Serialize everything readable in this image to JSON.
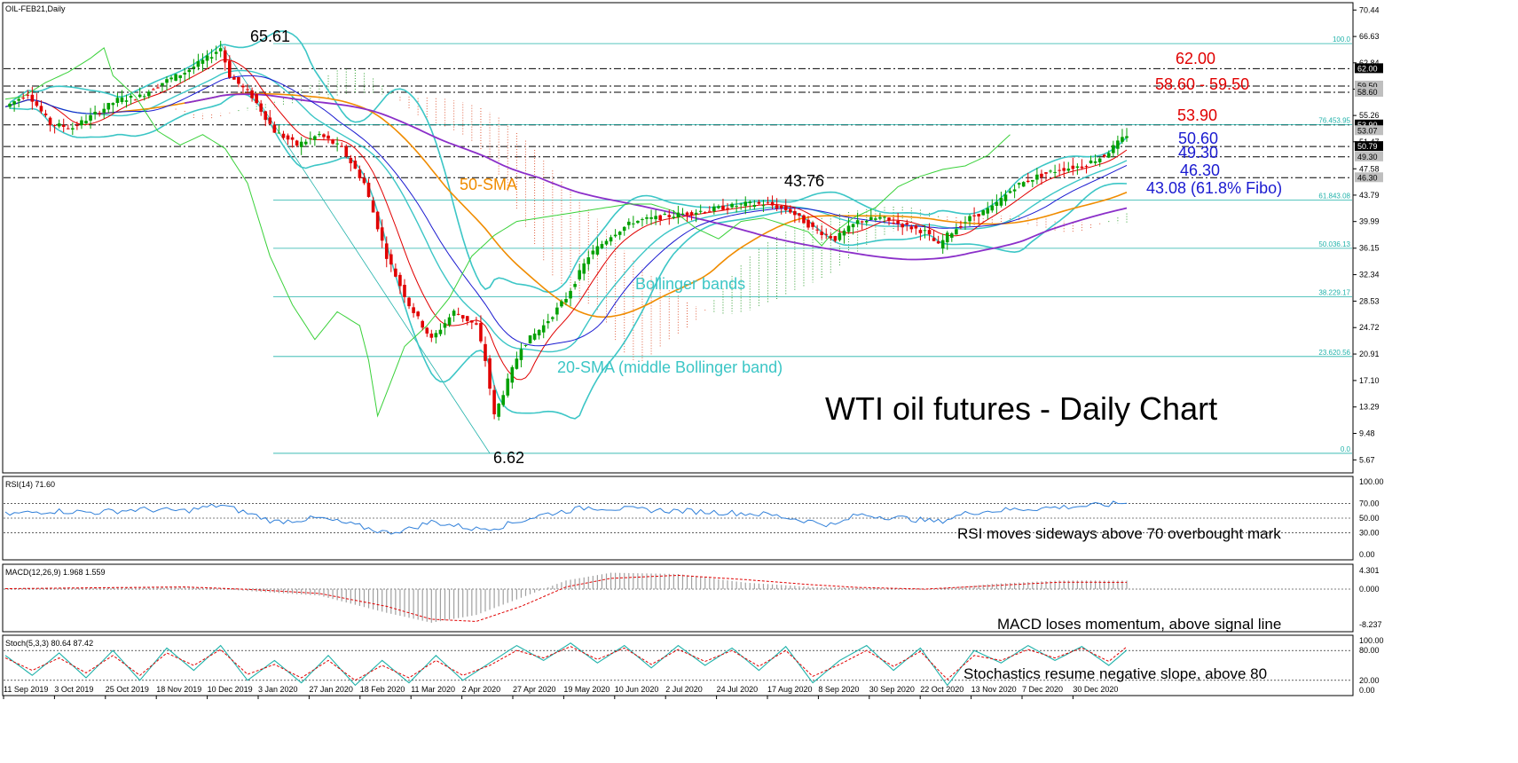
{
  "header": {
    "symbol": "OIL-FEB21,Daily",
    "title": "WTI oil futures - Daily Chart"
  },
  "colors": {
    "candle_up": "#00a000",
    "candle_down": "#e00000",
    "bollinger": "#3cc6c6",
    "sma50": "#f08c00",
    "sma200": "#8b2fc9",
    "tenkan": "#e00000",
    "kijun": "#1a1ad0",
    "chikou": "#3ad13a",
    "cloud_bull": "#2e9e2e",
    "cloud_bear": "#e06040",
    "fibo": "#20b2aa",
    "rsi": "#2f7fd9",
    "macd_hist": "#a0a0a0",
    "macd_signal": "#e00000",
    "stoch_k": "#20b2aa",
    "stoch_d": "#e00000"
  },
  "price_axis": {
    "ticks": [
      "70.44",
      "66.63",
      "62.84",
      "59.05",
      "55.26",
      "51.47",
      "47.58",
      "43.79",
      "39.99",
      "36.15",
      "32.34",
      "28.53",
      "24.72",
      "20.91",
      "17.10",
      "13.29",
      "9.48",
      "5.67"
    ],
    "highlights": [
      {
        "value": "62.00",
        "style": "dark"
      },
      {
        "value": "59.50",
        "style": "light"
      },
      {
        "value": "58.60",
        "style": "light"
      },
      {
        "value": "53.90",
        "style": "dark"
      },
      {
        "value": "53.07",
        "style": "light"
      },
      {
        "value": "50.79",
        "style": "dark"
      },
      {
        "value": "49.30",
        "style": "light"
      },
      {
        "value": "46.30",
        "style": "light"
      }
    ]
  },
  "fibo_labels": [
    "100.0",
    "61.843.08",
    "50.036.13",
    "38.229.17",
    "23.620.56",
    "0.0",
    "76.453.95"
  ],
  "annotations": {
    "high": "65.61",
    "low": "6.62",
    "mid_high": "43.76",
    "r1": "62.00",
    "r2": "58.60 - 59.50",
    "r3": "53.90",
    "s1": "50.60",
    "s2": "49.30",
    "s3": "46.30",
    "s4": "43.08 (61.8% Fibo)",
    "sma50_label": "50-SMA",
    "bb_label": "Bollinger bands",
    "sma20_label": "20-SMA (middle Bollinger band)"
  },
  "rsi_panel": {
    "title": "RSI(14) 71.60",
    "ticks": [
      "100.00",
      "70.00",
      "50.00",
      "30.00",
      "0.00"
    ],
    "comment": "RSI moves sideways above 70 overbought mark"
  },
  "macd_panel": {
    "title": "MACD(12,26,9) 1.968 1.559",
    "ticks": [
      "4.301",
      "0.000",
      "-8.237"
    ],
    "comment": "MACD loses momentum, above signal line"
  },
  "stoch_panel": {
    "title": "Stoch(5,3,3) 80.64 87.42",
    "ticks": [
      "100.00",
      "80.00",
      "20.00",
      "0.00"
    ],
    "comment": "Stochastics resume negative slope, above 80"
  },
  "x_axis": {
    "labels": [
      "11 Sep 2019",
      "3 Oct 2019",
      "25 Oct 2019",
      "18 Nov 2019",
      "10 Dec 2019",
      "3 Jan 2020",
      "27 Jan 2020",
      "18 Feb 2020",
      "11 Mar 2020",
      "2 Apr 2020",
      "27 Apr 2020",
      "19 May 2020",
      "10 Jun 2020",
      "2 Jul 2020",
      "24 Jul 2020",
      "17 Aug 2020",
      "8 Sep 2020",
      "30 Sep 2020",
      "22 Oct 2020",
      "13 Nov 2020",
      "7 Dec 2020",
      "30 Dec 2020"
    ]
  },
  "chart_data": {
    "type": "candlestick",
    "title": "WTI oil futures - Daily Chart",
    "y_range": [
      3.8,
      71.5
    ],
    "x_range_dates": [
      "11 Sep 2019",
      "13 Jan 2021"
    ],
    "price_path": [
      [
        0,
        56.5
      ],
      [
        5,
        58.5
      ],
      [
        10,
        54.0
      ],
      [
        15,
        53.5
      ],
      [
        20,
        55.5
      ],
      [
        25,
        57.5
      ],
      [
        30,
        58.0
      ],
      [
        35,
        60.0
      ],
      [
        40,
        61.5
      ],
      [
        45,
        63.5
      ],
      [
        48,
        65.0
      ],
      [
        50,
        61.0
      ],
      [
        55,
        58.0
      ],
      [
        60,
        53.0
      ],
      [
        65,
        51.0
      ],
      [
        70,
        52.5
      ],
      [
        75,
        50.5
      ],
      [
        80,
        45.5
      ],
      [
        85,
        35.0
      ],
      [
        90,
        28.0
      ],
      [
        95,
        23.0
      ],
      [
        100,
        27.0
      ],
      [
        105,
        25.0
      ],
      [
        107,
        20.0
      ],
      [
        109,
        12.0
      ],
      [
        112,
        17.0
      ],
      [
        115,
        22.0
      ],
      [
        120,
        25.0
      ],
      [
        125,
        29.0
      ],
      [
        130,
        35.0
      ],
      [
        135,
        38.0
      ],
      [
        140,
        40.0
      ],
      [
        145,
        40.5
      ],
      [
        150,
        41.0
      ],
      [
        155,
        41.5
      ],
      [
        160,
        42.0
      ],
      [
        165,
        42.5
      ],
      [
        170,
        42.5
      ],
      [
        175,
        41.5
      ],
      [
        180,
        39.0
      ],
      [
        185,
        37.5
      ],
      [
        190,
        40.0
      ],
      [
        195,
        40.5
      ],
      [
        200,
        39.5
      ],
      [
        205,
        38.5
      ],
      [
        208,
        36.5
      ],
      [
        210,
        38.0
      ],
      [
        215,
        40.5
      ],
      [
        220,
        42.0
      ],
      [
        225,
        45.0
      ],
      [
        230,
        46.5
      ],
      [
        235,
        47.5
      ],
      [
        240,
        48.0
      ],
      [
        245,
        49.5
      ],
      [
        250,
        52.5
      ]
    ],
    "rsi": [
      [
        0,
        55
      ],
      [
        10,
        60
      ],
      [
        20,
        58
      ],
      [
        30,
        62
      ],
      [
        40,
        60
      ],
      [
        48,
        68
      ],
      [
        55,
        55
      ],
      [
        60,
        45
      ],
      [
        70,
        50
      ],
      [
        78,
        40
      ],
      [
        85,
        30
      ],
      [
        90,
        35
      ],
      [
        95,
        45
      ],
      [
        100,
        40
      ],
      [
        105,
        35
      ],
      [
        110,
        38
      ],
      [
        120,
        55
      ],
      [
        130,
        65
      ],
      [
        140,
        62
      ],
      [
        150,
        60
      ],
      [
        160,
        58
      ],
      [
        170,
        55
      ],
      [
        180,
        45
      ],
      [
        185,
        40
      ],
      [
        190,
        55
      ],
      [
        200,
        50
      ],
      [
        208,
        45
      ],
      [
        215,
        58
      ],
      [
        225,
        62
      ],
      [
        235,
        65
      ],
      [
        245,
        68
      ],
      [
        250,
        71.6
      ]
    ],
    "macd_hist": [
      [
        0,
        0.2
      ],
      [
        20,
        0.4
      ],
      [
        40,
        0.6
      ],
      [
        55,
        -0.5
      ],
      [
        70,
        -1.5
      ],
      [
        85,
        -5.5
      ],
      [
        95,
        -7.8
      ],
      [
        105,
        -6.0
      ],
      [
        115,
        -2.0
      ],
      [
        125,
        2.0
      ],
      [
        135,
        3.8
      ],
      [
        150,
        3.5
      ],
      [
        165,
        1.5
      ],
      [
        180,
        0.5
      ],
      [
        190,
        0.3
      ],
      [
        205,
        -0.2
      ],
      [
        220,
        1.2
      ],
      [
        235,
        2.0
      ],
      [
        250,
        1.97
      ]
    ],
    "macd_signal": [
      [
        0,
        0.1
      ],
      [
        20,
        0.3
      ],
      [
        40,
        0.5
      ],
      [
        55,
        -0.1
      ],
      [
        70,
        -1.0
      ],
      [
        85,
        -4.0
      ],
      [
        95,
        -7.0
      ],
      [
        105,
        -7.5
      ],
      [
        115,
        -4.0
      ],
      [
        125,
        0.5
      ],
      [
        135,
        2.5
      ],
      [
        150,
        3.2
      ],
      [
        165,
        2.2
      ],
      [
        180,
        1.0
      ],
      [
        190,
        0.4
      ],
      [
        205,
        0.0
      ],
      [
        220,
        0.8
      ],
      [
        235,
        1.6
      ],
      [
        250,
        1.56
      ]
    ],
    "stoch_k": [
      [
        0,
        70
      ],
      [
        6,
        30
      ],
      [
        12,
        75
      ],
      [
        18,
        25
      ],
      [
        24,
        80
      ],
      [
        30,
        20
      ],
      [
        36,
        85
      ],
      [
        42,
        40
      ],
      [
        48,
        90
      ],
      [
        54,
        20
      ],
      [
        60,
        60
      ],
      [
        66,
        15
      ],
      [
        72,
        70
      ],
      [
        78,
        10
      ],
      [
        84,
        60
      ],
      [
        90,
        15
      ],
      [
        96,
        70
      ],
      [
        102,
        20
      ],
      [
        108,
        55
      ],
      [
        114,
        90
      ],
      [
        120,
        60
      ],
      [
        126,
        95
      ],
      [
        132,
        55
      ],
      [
        138,
        90
      ],
      [
        144,
        45
      ],
      [
        150,
        90
      ],
      [
        156,
        50
      ],
      [
        162,
        85
      ],
      [
        168,
        40
      ],
      [
        174,
        88
      ],
      [
        180,
        15
      ],
      [
        186,
        60
      ],
      [
        192,
        90
      ],
      [
        198,
        40
      ],
      [
        204,
        85
      ],
      [
        210,
        10
      ],
      [
        216,
        80
      ],
      [
        222,
        55
      ],
      [
        228,
        90
      ],
      [
        234,
        60
      ],
      [
        240,
        88
      ],
      [
        246,
        50
      ],
      [
        250,
        80.64
      ]
    ],
    "stoch_d": [
      [
        0,
        65
      ],
      [
        6,
        40
      ],
      [
        12,
        65
      ],
      [
        18,
        35
      ],
      [
        24,
        70
      ],
      [
        30,
        30
      ],
      [
        36,
        75
      ],
      [
        42,
        50
      ],
      [
        48,
        82
      ],
      [
        54,
        32
      ],
      [
        60,
        52
      ],
      [
        66,
        25
      ],
      [
        72,
        60
      ],
      [
        78,
        20
      ],
      [
        84,
        50
      ],
      [
        90,
        25
      ],
      [
        96,
        60
      ],
      [
        102,
        30
      ],
      [
        108,
        50
      ],
      [
        114,
        80
      ],
      [
        120,
        65
      ],
      [
        126,
        88
      ],
      [
        132,
        62
      ],
      [
        138,
        85
      ],
      [
        144,
        52
      ],
      [
        150,
        82
      ],
      [
        156,
        58
      ],
      [
        162,
        80
      ],
      [
        168,
        48
      ],
      [
        174,
        80
      ],
      [
        180,
        28
      ],
      [
        186,
        52
      ],
      [
        192,
        80
      ],
      [
        198,
        48
      ],
      [
        204,
        78
      ],
      [
        210,
        22
      ],
      [
        216,
        70
      ],
      [
        222,
        60
      ],
      [
        228,
        82
      ],
      [
        234,
        65
      ],
      [
        240,
        85
      ],
      [
        246,
        58
      ],
      [
        250,
        87.42
      ]
    ]
  }
}
